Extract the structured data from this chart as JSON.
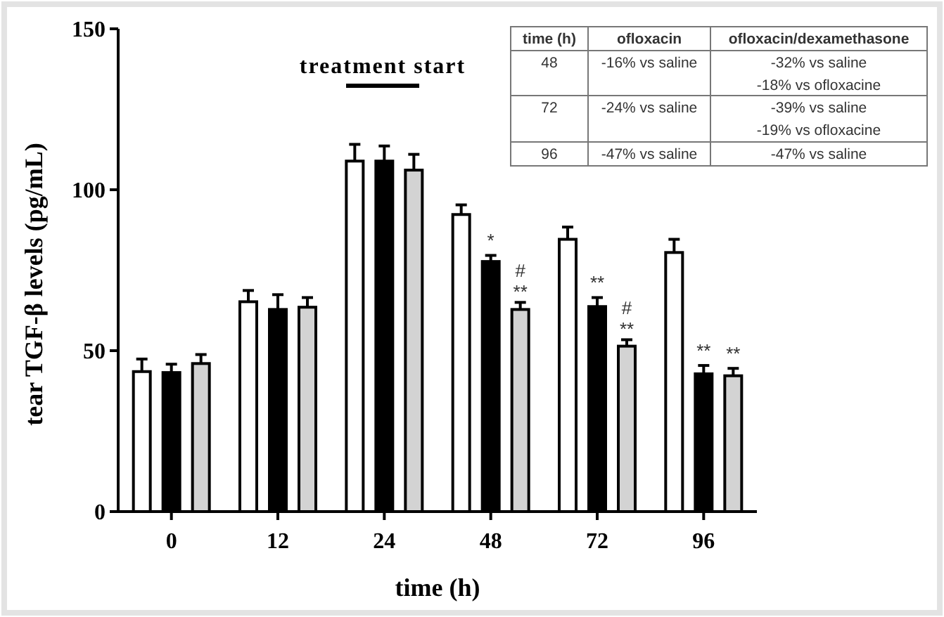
{
  "chart_data": {
    "type": "bar",
    "xlabel": "time (h)",
    "ylabel": "tear TGF-β levels (pg/mL)",
    "categories": [
      "0",
      "12",
      "24",
      "48",
      "72",
      "96"
    ],
    "ylim": [
      0,
      150
    ],
    "yticks": [
      0,
      50,
      100,
      150
    ],
    "grid": false,
    "series": [
      {
        "color": "#ffffff",
        "values": [
          43.5,
          65.2,
          108.9,
          92.3,
          84.6,
          80.5
        ],
        "errors": [
          3.9,
          3.5,
          5.2,
          3,
          3.8,
          4.1
        ],
        "value_labels": [
          null,
          null,
          null,
          null,
          null,
          null
        ]
      },
      {
        "color": "#000000",
        "values": [
          43.2,
          62.8,
          108.9,
          77.7,
          63.7,
          42.8
        ],
        "errors": [
          2.6,
          4.6,
          4.7,
          1.9,
          2.8,
          2.6
        ],
        "value_labels": [
          null,
          null,
          null,
          "*",
          "**",
          "**"
        ]
      },
      {
        "color": "#d3d3d3",
        "values": [
          46,
          63.5,
          106.1,
          62.8,
          51.4,
          42.2
        ],
        "errors": [
          2.8,
          3,
          4.9,
          2.2,
          2,
          2.3
        ],
        "value_labels": [
          null,
          null,
          null,
          "#\n**",
          "#\n**",
          "**"
        ]
      }
    ],
    "annotations": [
      "treatment start",
      "time (h)",
      "ofloxacin",
      "ofloxacin/dexamethasone",
      "48",
      "-16% vs saline",
      "-32% vs saline\n-18% vs ofloxacine",
      "72",
      "-24% vs saline",
      "-39% vs saline\n-19% vs ofloxacine",
      "96",
      "-47% vs saline",
      "-47% vs saline"
    ]
  }
}
